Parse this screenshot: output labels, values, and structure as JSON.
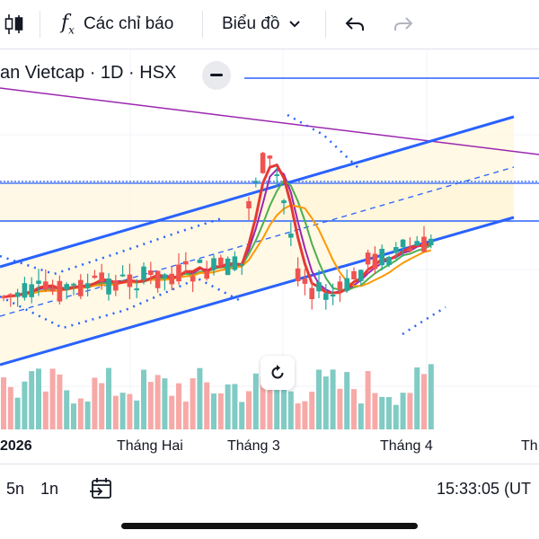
{
  "toolbar": {
    "indicators_label": "Các chỉ báo",
    "chart_type_label": "Biểu đồ",
    "undo_icon": "undo-icon",
    "redo_icon": "redo-icon"
  },
  "symbol": {
    "title": "an Vietcap · 1D · HSX"
  },
  "time_axis": {
    "labels": [
      "2026",
      "Tháng Hai",
      "Tháng 3",
      "Tháng 4",
      "Th"
    ]
  },
  "bottom_bar": {
    "ranges": [
      "5n",
      "1n"
    ],
    "time": "15:33:05 (UT"
  },
  "colors": {
    "up": "#26a69a",
    "down": "#ef5350",
    "channel": "#2962ff",
    "trend": "#9c27b0",
    "volume_up": "#80cbc4",
    "volume_down": "#f7a9a7"
  }
}
